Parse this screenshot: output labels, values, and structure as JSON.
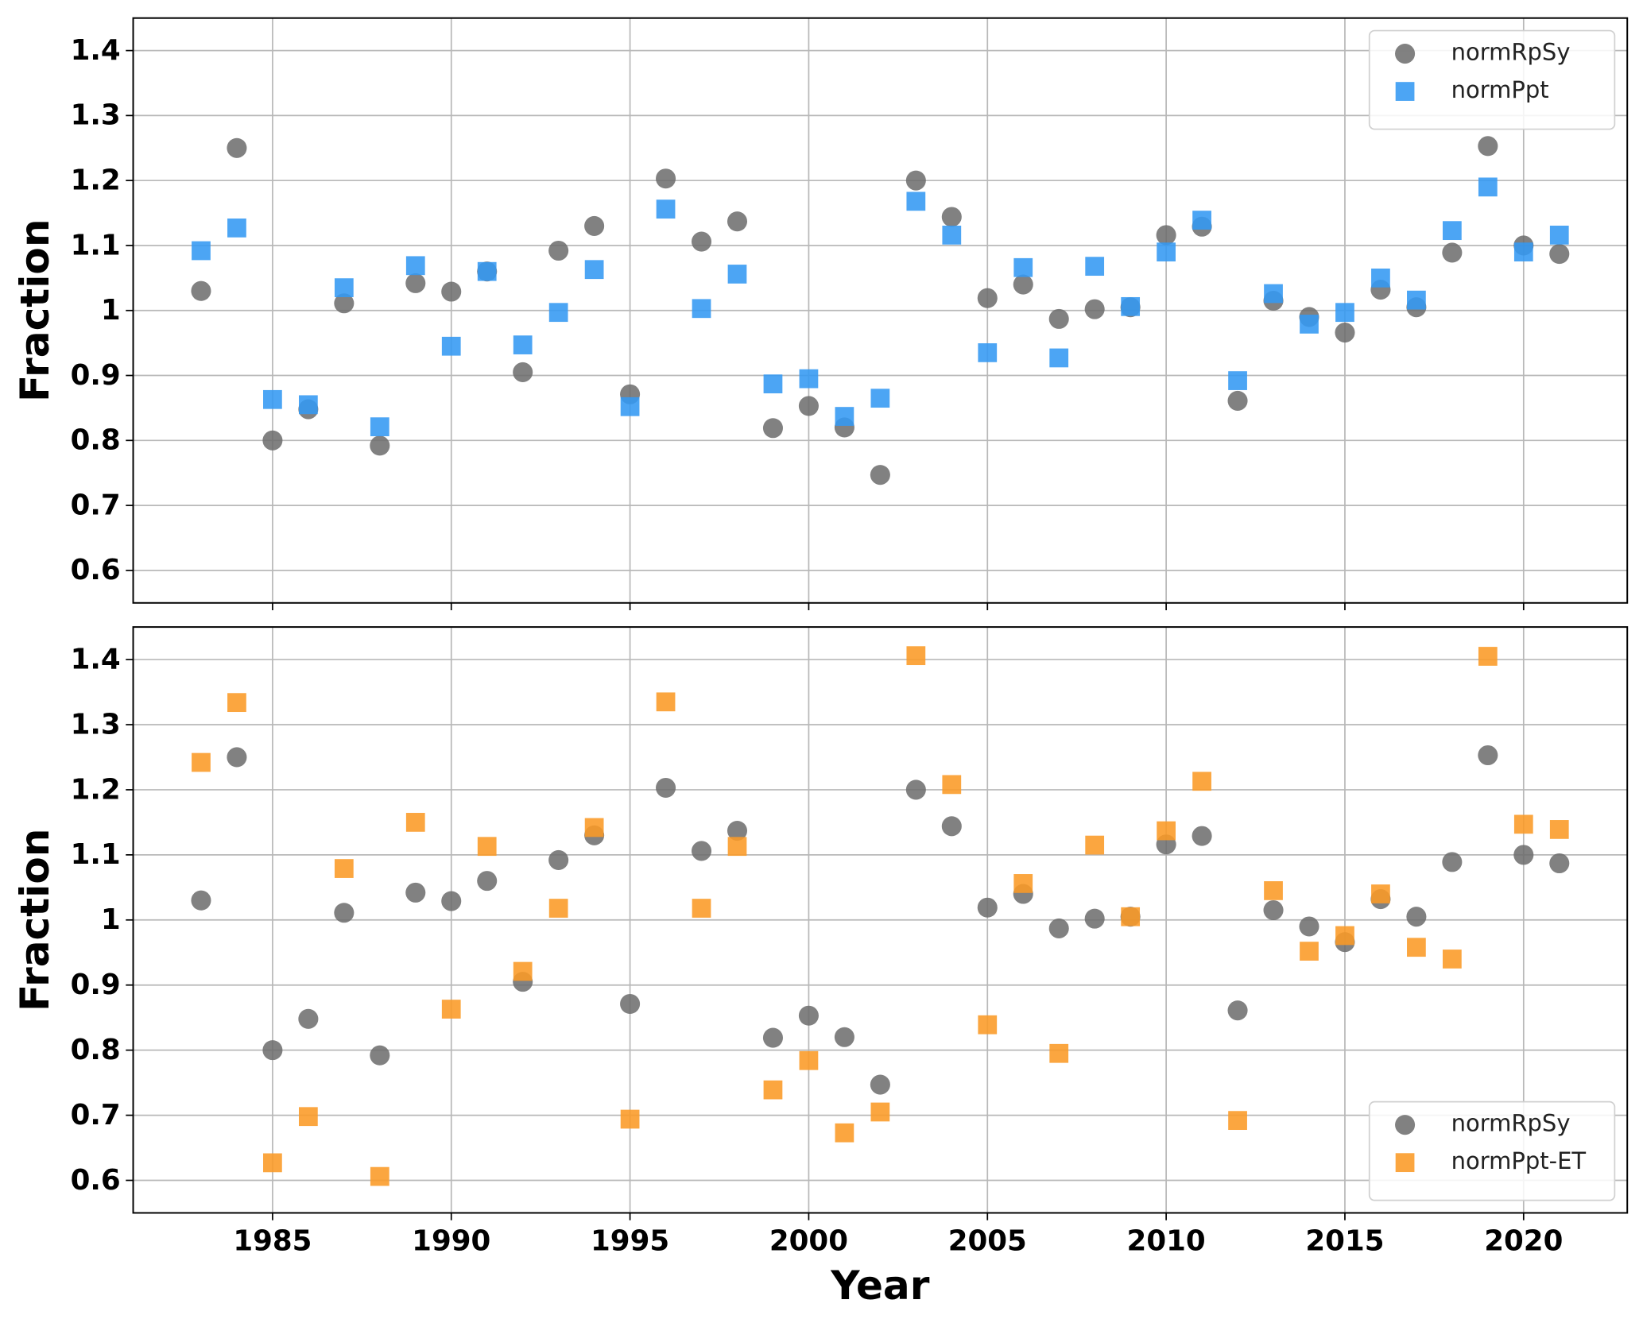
{
  "chart_data": [
    {
      "type": "scatter",
      "ylabel": "Fraction",
      "x": [
        1983,
        1984,
        1985,
        1986,
        1987,
        1988,
        1989,
        1990,
        1991,
        1992,
        1993,
        1994,
        1995,
        1996,
        1997,
        1998,
        1999,
        2000,
        2001,
        2002,
        2003,
        2004,
        2005,
        2006,
        2007,
        2008,
        2009,
        2010,
        2011,
        2012,
        2013,
        2014,
        2015,
        2016,
        2017,
        2018,
        2019,
        2020,
        2021
      ],
      "series": [
        {
          "name": "normRpSy",
          "color": "#6b6b6b",
          "marker": "o",
          "values": [
            1.03,
            1.25,
            0.8,
            0.848,
            1.011,
            0.792,
            1.042,
            1.029,
            1.06,
            0.905,
            1.092,
            1.13,
            0.871,
            1.203,
            1.106,
            1.137,
            0.819,
            0.853,
            0.82,
            0.747,
            1.2,
            1.144,
            1.019,
            1.04,
            0.987,
            1.002,
            1.005,
            1.116,
            1.129,
            0.861,
            1.015,
            0.99,
            0.966,
            1.032,
            1.005,
            1.089,
            1.253,
            1.1,
            1.087
          ]
        },
        {
          "name": "normPpt",
          "color": "#3399f3",
          "marker": "s",
          "values": [
            1.092,
            1.127,
            0.863,
            0.855,
            1.035,
            0.821,
            1.069,
            0.945,
            1.06,
            0.947,
            0.997,
            1.063,
            0.852,
            1.156,
            1.003,
            1.056,
            0.887,
            0.895,
            0.837,
            0.865,
            1.168,
            1.116,
            0.935,
            1.066,
            0.927,
            1.068,
            1.006,
            1.09,
            1.139,
            0.892,
            1.026,
            0.979,
            0.997,
            1.05,
            1.016,
            1.123,
            1.19,
            1.09,
            1.116
          ]
        }
      ],
      "xlim": [
        1981.1,
        2022.9
      ],
      "xticks": [
        1985,
        1990,
        1995,
        2000,
        2005,
        2010,
        2015,
        2020
      ],
      "ylim": [
        0.55,
        1.45
      ],
      "yticks": [
        1.4,
        1.3,
        1.2,
        1.1,
        1,
        0.9,
        0.8,
        0.7,
        0.6
      ],
      "grid": true,
      "legend": "upper right"
    },
    {
      "type": "scatter",
      "xlabel": "Year",
      "ylabel": "Fraction",
      "x": [
        1983,
        1984,
        1985,
        1986,
        1987,
        1988,
        1989,
        1990,
        1991,
        1992,
        1993,
        1994,
        1995,
        1996,
        1997,
        1998,
        1999,
        2000,
        2001,
        2002,
        2003,
        2004,
        2005,
        2006,
        2007,
        2008,
        2009,
        2010,
        2011,
        2012,
        2013,
        2014,
        2015,
        2016,
        2017,
        2018,
        2019,
        2020,
        2021
      ],
      "series": [
        {
          "name": "normRpSy",
          "color": "#6b6b6b",
          "marker": "o",
          "values": [
            1.03,
            1.25,
            0.8,
            0.848,
            1.011,
            0.792,
            1.042,
            1.029,
            1.06,
            0.905,
            1.092,
            1.13,
            0.871,
            1.203,
            1.106,
            1.137,
            0.819,
            0.853,
            0.82,
            0.747,
            1.2,
            1.144,
            1.019,
            1.04,
            0.987,
            1.002,
            1.005,
            1.116,
            1.129,
            0.861,
            1.015,
            0.99,
            0.966,
            1.032,
            1.005,
            1.089,
            1.253,
            1.1,
            1.087
          ]
        },
        {
          "name": "normPpt-ET",
          "color": "#fb9a26",
          "marker": "s",
          "values": [
            1.242,
            1.334,
            0.627,
            0.698,
            1.079,
            0.606,
            1.15,
            0.863,
            1.113,
            0.921,
            1.018,
            1.142,
            0.694,
            1.335,
            1.018,
            1.113,
            0.739,
            0.784,
            0.673,
            0.705,
            1.406,
            1.208,
            0.839,
            1.056,
            0.795,
            1.115,
            1.005,
            1.137,
            1.213,
            0.692,
            1.045,
            0.952,
            0.976,
            1.04,
            0.958,
            0.94,
            1.405,
            1.147,
            1.139
          ]
        }
      ],
      "xlim": [
        1981.1,
        2022.9
      ],
      "xticks": [
        1985,
        1990,
        1995,
        2000,
        2005,
        2010,
        2015,
        2020
      ],
      "ylim": [
        0.55,
        1.45
      ],
      "yticks": [
        1.4,
        1.3,
        1.2,
        1.1,
        1,
        0.9,
        0.8,
        0.7,
        0.6
      ],
      "grid": true,
      "legend": "lower right"
    }
  ]
}
